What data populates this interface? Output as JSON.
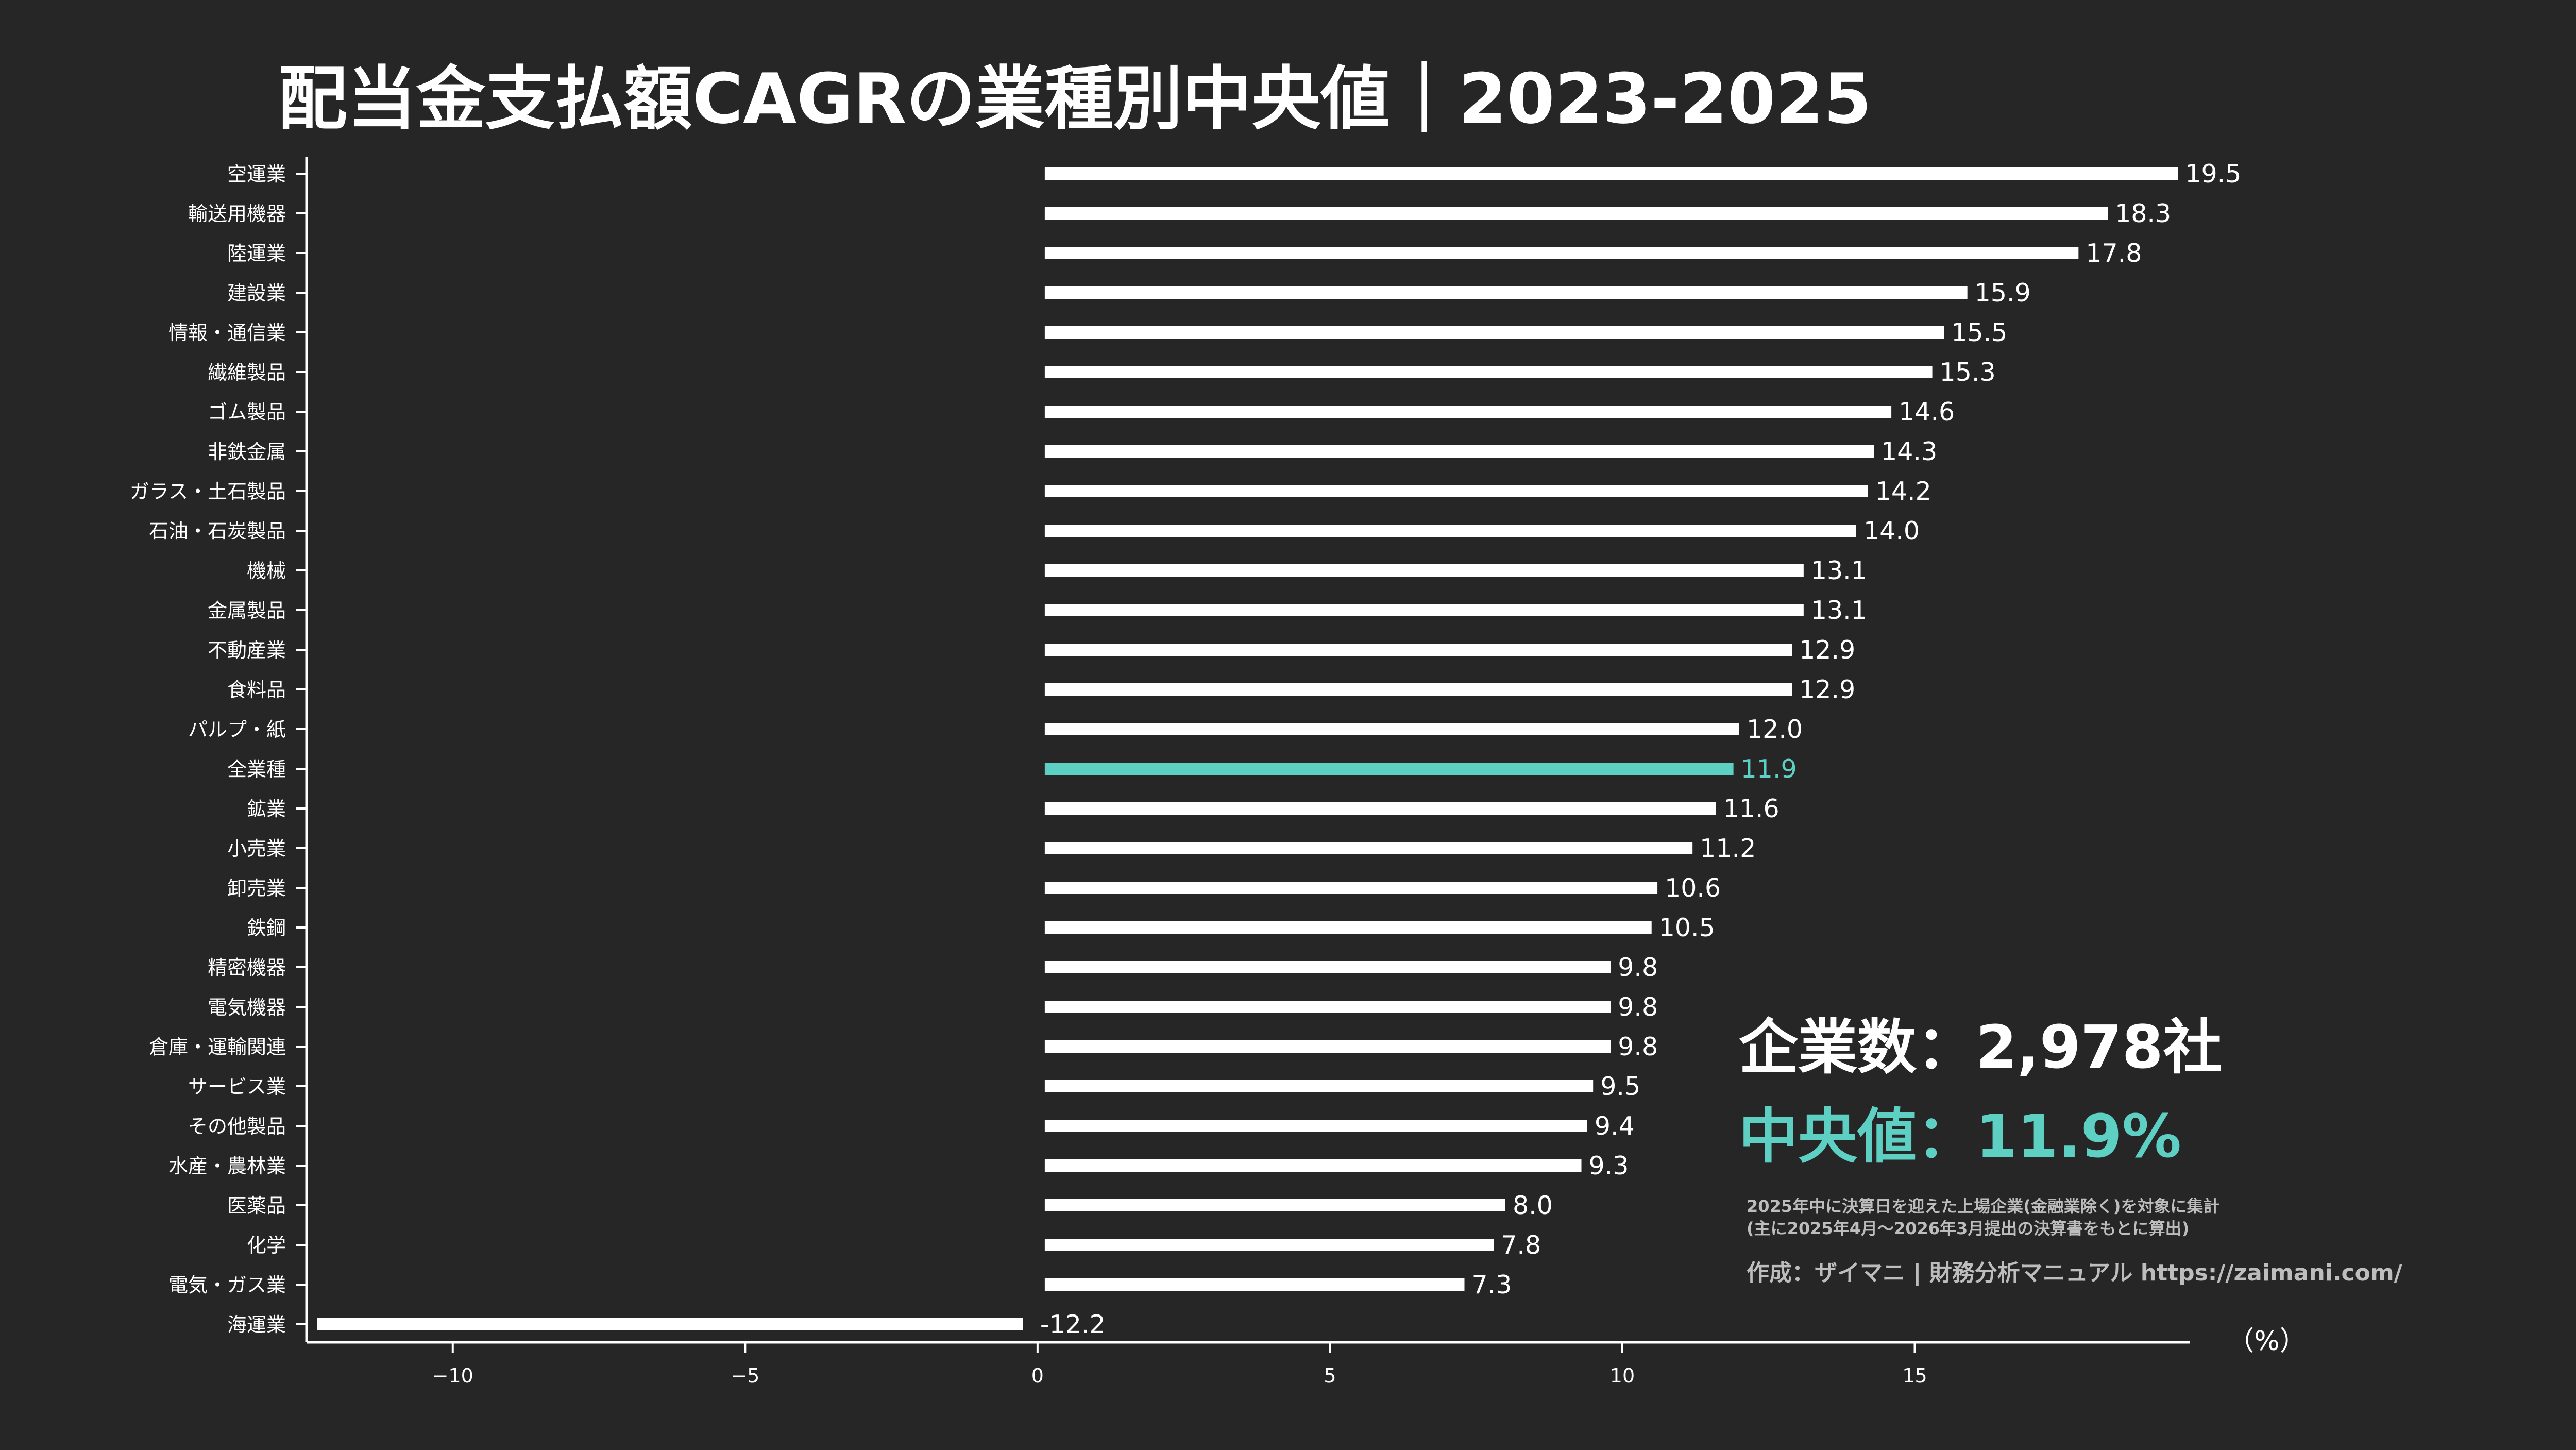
{
  "title": "配当金支払額CAGRの業種別中央値｜2023-2025",
  "stats": {
    "companies": "企業数：2,978社",
    "median": "中央値：11.9%"
  },
  "notes": [
    "2025年中に決算日を迎えた上場企業(金融業除く)を対象に集計",
    "(主に2025年4月～2026年3月提出の決算書をもとに算出)"
  ],
  "credit": "作成：ザイマニ | 財務分析マニュアル https://zaimani.com/",
  "colors": {
    "background": "#262626",
    "bar": "#ffffff",
    "highlight": "#5ecfc3",
    "text": "#ffffff",
    "note": "#bdbdbd"
  },
  "chart_data": {
    "type": "bar",
    "orientation": "horizontal",
    "categories": [
      "空運業",
      "輸送用機器",
      "陸運業",
      "建設業",
      "情報・通信業",
      "繊維製品",
      "ゴム製品",
      "非鉄金属",
      "ガラス・土石製品",
      "石油・石炭製品",
      "機械",
      "金属製品",
      "不動産業",
      "食料品",
      "パルプ・紙",
      "全業種",
      "鉱業",
      "小売業",
      "卸売業",
      "鉄鋼",
      "精密機器",
      "電気機器",
      "倉庫・運輸関連",
      "サービス業",
      "その他製品",
      "水産・農林業",
      "医薬品",
      "化学",
      "電気・ガス業",
      "海運業"
    ],
    "values": [
      19.5,
      18.3,
      17.8,
      15.9,
      15.5,
      15.3,
      14.6,
      14.3,
      14.2,
      14.0,
      13.1,
      13.1,
      12.9,
      12.9,
      12.0,
      11.9,
      11.6,
      11.2,
      10.6,
      10.5,
      9.8,
      9.8,
      9.8,
      9.5,
      9.4,
      9.3,
      8.0,
      7.8,
      7.3,
      -12.2
    ],
    "value_labels": [
      "19.5",
      "18.3",
      "17.8",
      "15.9",
      "15.5",
      "15.3",
      "14.6",
      "14.3",
      "14.2",
      "14.0",
      "13.1",
      "13.1",
      "12.9",
      "12.9",
      "12.0",
      "11.9",
      "11.6",
      "11.2",
      "10.6",
      "10.5",
      "9.8",
      "9.8",
      "9.8",
      "9.5",
      "9.4",
      "9.3",
      "8.0",
      "7.8",
      "7.3",
      "-12.2"
    ],
    "highlight_category": "全業種",
    "xticks": [
      -10,
      -5,
      0,
      5,
      10,
      15
    ],
    "xtick_labels": [
      "−10",
      "−5",
      "0",
      "5",
      "10",
      "15"
    ],
    "xlim": [
      -12.5,
      19.7
    ],
    "xlabel": "（%）",
    "ylabel": "",
    "grid": false
  }
}
